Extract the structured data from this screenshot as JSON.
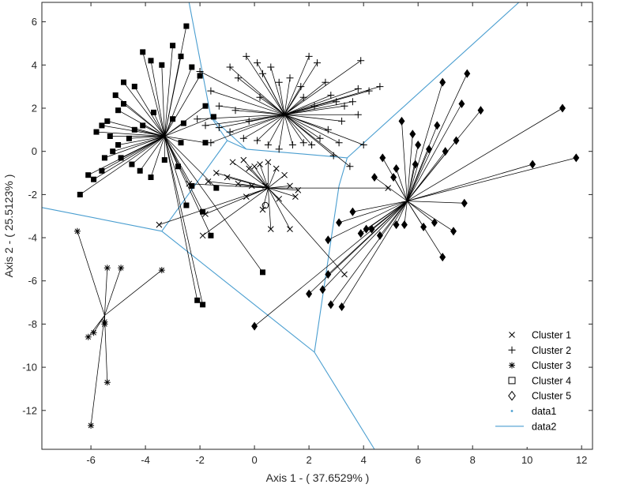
{
  "chart_data": {
    "type": "scatter",
    "title": "",
    "xlabel": "Axis 1 - ( 37.6529% )",
    "ylabel": "Axis 2 - ( 25.5123% )",
    "xlim": [
      -7.8,
      12.4
    ],
    "ylim": [
      -13.8,
      6.9
    ],
    "xticks": [
      -6,
      -4,
      -2,
      0,
      2,
      4,
      6,
      8,
      10,
      12
    ],
    "xtick_labels": [
      "-6",
      "-4",
      "-2",
      "0",
      "2",
      "4",
      "6",
      "8",
      "10",
      "12"
    ],
    "yticks": [
      -12,
      -10,
      -8,
      -6,
      -4,
      -2,
      0,
      2,
      4,
      6
    ],
    "ytick_labels": [
      "-12",
      "-10",
      "-8",
      "-6",
      "-4",
      "-2",
      "0",
      "2",
      "4",
      "6"
    ],
    "grid": false,
    "legend_position": "bottom-right",
    "colors": {
      "points": "#000000",
      "voronoi": "#4a9ed0",
      "axes": "#262626"
    },
    "clusters": [
      {
        "name": "Cluster 1",
        "marker": "x",
        "centroid": [
          0.5,
          -1.7
        ],
        "points": [
          [
            -3.5,
            -3.4
          ],
          [
            -1.9,
            -3.9
          ],
          [
            -1.8,
            -2.9
          ],
          [
            -2.4,
            -1.5
          ],
          [
            -1.7,
            -1.4
          ],
          [
            -1.0,
            -1.2
          ],
          [
            -0.8,
            -0.5
          ],
          [
            -0.6,
            -1.5
          ],
          [
            -0.4,
            -0.4
          ],
          [
            -0.2,
            -0.8
          ],
          [
            0.0,
            -0.7
          ],
          [
            0.2,
            -0.6
          ],
          [
            0.5,
            -0.5
          ],
          [
            0.8,
            -0.8
          ],
          [
            1.1,
            -1.1
          ],
          [
            0.4,
            -1.6
          ],
          [
            -0.3,
            -2.1
          ],
          [
            0.3,
            -2.7
          ],
          [
            0.6,
            -3.6
          ],
          [
            1.3,
            -3.6
          ],
          [
            1.5,
            -2.1
          ],
          [
            1.3,
            -1.6
          ],
          [
            0.9,
            -2.2
          ],
          [
            4.9,
            -1.7
          ],
          [
            3.3,
            -5.7
          ],
          [
            -1.4,
            -1.0
          ],
          [
            1.6,
            -1.8
          ],
          [
            -0.1,
            -1.6
          ]
        ]
      },
      {
        "name": "Cluster 2",
        "marker": "+",
        "centroid": [
          1.1,
          1.7
        ],
        "points": [
          [
            -2.0,
            3.7
          ],
          [
            -1.6,
            2.8
          ],
          [
            -1.3,
            2.1
          ],
          [
            -0.9,
            3.9
          ],
          [
            -0.6,
            3.4
          ],
          [
            -0.3,
            4.4
          ],
          [
            0.1,
            4.1
          ],
          [
            0.3,
            3.6
          ],
          [
            0.6,
            3.9
          ],
          [
            0.9,
            3.2
          ],
          [
            1.3,
            3.4
          ],
          [
            1.7,
            3.0
          ],
          [
            2.0,
            4.4
          ],
          [
            2.3,
            4.1
          ],
          [
            2.6,
            3.2
          ],
          [
            2.8,
            2.6
          ],
          [
            3.0,
            2.3
          ],
          [
            3.3,
            2.1
          ],
          [
            3.6,
            2.3
          ],
          [
            3.9,
            4.2
          ],
          [
            4.2,
            2.8
          ],
          [
            4.6,
            3.0
          ],
          [
            3.8,
            1.7
          ],
          [
            3.2,
            1.4
          ],
          [
            2.7,
            1.0
          ],
          [
            2.4,
            0.6
          ],
          [
            2.1,
            0.3
          ],
          [
            1.8,
            0.4
          ],
          [
            1.4,
            0.3
          ],
          [
            0.9,
            0.1
          ],
          [
            0.5,
            0.3
          ],
          [
            0.1,
            0.5
          ],
          [
            -0.4,
            0.6
          ],
          [
            -0.9,
            0.9
          ],
          [
            -1.3,
            1.1
          ],
          [
            -1.8,
            1.2
          ],
          [
            -2.1,
            1.5
          ],
          [
            -1.6,
            0.4
          ],
          [
            -0.7,
            1.9
          ],
          [
            0.2,
            2.5
          ],
          [
            1.8,
            2.5
          ],
          [
            3.1,
            0.4
          ],
          [
            3.5,
            -0.7
          ],
          [
            4.0,
            0.3
          ],
          [
            2.9,
            -0.2
          ],
          [
            -0.2,
            1.4
          ],
          [
            2.2,
            2.1
          ],
          [
            3.8,
            2.9
          ]
        ]
      },
      {
        "name": "Cluster 3",
        "marker": "*",
        "centroid": [
          -5.5,
          -7.6
        ],
        "points": [
          [
            -6.5,
            -3.7
          ],
          [
            -5.4,
            -5.4
          ],
          [
            -4.9,
            -5.4
          ],
          [
            -3.4,
            -5.5
          ],
          [
            -5.5,
            -8.0
          ],
          [
            -5.5,
            -7.9
          ],
          [
            -5.9,
            -8.4
          ],
          [
            -6.1,
            -8.6
          ],
          [
            -5.4,
            -10.7
          ],
          [
            -6.0,
            -12.7
          ]
        ]
      },
      {
        "name": "Cluster 4",
        "marker": "square",
        "centroid": [
          -3.3,
          0.7
        ],
        "points": [
          [
            -6.4,
            -2.0
          ],
          [
            -6.1,
            -1.1
          ],
          [
            -5.9,
            -1.3
          ],
          [
            -5.6,
            -0.9
          ],
          [
            -5.5,
            -0.3
          ],
          [
            -5.2,
            0.0
          ],
          [
            -5.0,
            0.3
          ],
          [
            -5.3,
            0.7
          ],
          [
            -5.6,
            1.2
          ],
          [
            -5.4,
            1.4
          ],
          [
            -5.0,
            1.9
          ],
          [
            -4.8,
            2.2
          ],
          [
            -5.1,
            2.6
          ],
          [
            -4.8,
            3.2
          ],
          [
            -4.4,
            3.0
          ],
          [
            -4.1,
            4.6
          ],
          [
            -3.8,
            4.2
          ],
          [
            -3.4,
            4.0
          ],
          [
            -3.0,
            4.9
          ],
          [
            -2.7,
            4.4
          ],
          [
            -2.5,
            5.8
          ],
          [
            -2.3,
            3.9
          ],
          [
            -2.0,
            3.5
          ],
          [
            -1.8,
            2.1
          ],
          [
            -1.5,
            1.6
          ],
          [
            -2.6,
            1.3
          ],
          [
            -3.0,
            1.5
          ],
          [
            -3.7,
            1.8
          ],
          [
            -4.1,
            1.2
          ],
          [
            -4.4,
            1.0
          ],
          [
            -4.6,
            0.6
          ],
          [
            -4.9,
            -0.3
          ],
          [
            -4.5,
            -0.6
          ],
          [
            -4.2,
            -0.9
          ],
          [
            -3.8,
            -1.2
          ],
          [
            -3.3,
            -0.4
          ],
          [
            -2.8,
            -0.7
          ],
          [
            -2.3,
            -1.6
          ],
          [
            -1.8,
            0.4
          ],
          [
            -2.5,
            -2.5
          ],
          [
            -1.9,
            -2.8
          ],
          [
            -1.6,
            -3.9
          ],
          [
            -2.1,
            -6.9
          ],
          [
            -1.9,
            -7.1
          ],
          [
            0.3,
            -5.6
          ],
          [
            -1.4,
            -1.7
          ],
          [
            -2.7,
            0.4
          ],
          [
            -5.8,
            0.9
          ]
        ]
      },
      {
        "name": "Cluster 5",
        "marker": "diamond",
        "centroid": [
          5.6,
          -2.3
        ],
        "points": [
          [
            0.0,
            -8.1
          ],
          [
            2.0,
            -6.6
          ],
          [
            2.5,
            -6.4
          ],
          [
            2.8,
            -7.1
          ],
          [
            3.2,
            -7.2
          ],
          [
            2.7,
            -5.7
          ],
          [
            2.7,
            -4.1
          ],
          [
            3.1,
            -3.3
          ],
          [
            3.9,
            -3.8
          ],
          [
            4.1,
            -3.6
          ],
          [
            4.3,
            -3.6
          ],
          [
            4.6,
            -3.9
          ],
          [
            5.2,
            -3.4
          ],
          [
            5.5,
            -3.4
          ],
          [
            6.2,
            -3.5
          ],
          [
            6.6,
            -3.3
          ],
          [
            6.9,
            -4.9
          ],
          [
            7.3,
            -3.7
          ],
          [
            7.7,
            -2.4
          ],
          [
            5.1,
            -1.2
          ],
          [
            4.7,
            -0.3
          ],
          [
            5.2,
            -0.8
          ],
          [
            5.9,
            -0.6
          ],
          [
            6.4,
            0.1
          ],
          [
            6.7,
            1.2
          ],
          [
            7.0,
            0.0
          ],
          [
            7.4,
            0.5
          ],
          [
            7.6,
            2.2
          ],
          [
            7.8,
            3.6
          ],
          [
            8.3,
            1.9
          ],
          [
            5.4,
            1.4
          ],
          [
            5.8,
            0.8
          ],
          [
            6.0,
            0.3
          ],
          [
            6.9,
            3.2
          ],
          [
            10.2,
            -0.6
          ],
          [
            11.3,
            2.0
          ],
          [
            11.8,
            -0.3
          ],
          [
            3.6,
            -2.8
          ],
          [
            4.4,
            -1.2
          ]
        ]
      }
    ],
    "data1_points": [
      [
        0.4,
        -2.5
      ]
    ],
    "voronoi_segments": [
      [
        [
          -2.4,
          6.9
        ],
        [
          -1.6,
          1.6
        ]
      ],
      [
        [
          -1.6,
          1.6
        ],
        [
          -1.0,
          0.5
        ]
      ],
      [
        [
          -1.6,
          1.6
        ],
        [
          -0.3,
          0.1
        ]
      ],
      [
        [
          -1.0,
          0.5
        ],
        [
          -3.4,
          -3.7
        ]
      ],
      [
        [
          -1.0,
          0.5
        ],
        [
          -0.3,
          0.1
        ]
      ],
      [
        [
          -0.3,
          0.1
        ],
        [
          3.4,
          -0.3
        ]
      ],
      [
        [
          3.4,
          -0.3
        ],
        [
          9.7,
          6.9
        ]
      ],
      [
        [
          3.4,
          -0.3
        ],
        [
          3.1,
          -1.6
        ]
      ],
      [
        [
          3.1,
          -1.6
        ],
        [
          2.2,
          -9.3
        ]
      ],
      [
        [
          -3.4,
          -3.7
        ],
        [
          -7.8,
          -2.6
        ]
      ],
      [
        [
          -3.4,
          -3.7
        ],
        [
          2.2,
          -9.3
        ]
      ],
      [
        [
          2.2,
          -9.3
        ],
        [
          4.4,
          -13.8
        ]
      ]
    ],
    "legend": [
      {
        "label": "Cluster 1",
        "marker": "x"
      },
      {
        "label": "Cluster 2",
        "marker": "+"
      },
      {
        "label": "Cluster 3",
        "marker": "*"
      },
      {
        "label": "Cluster 4",
        "marker": "open-square"
      },
      {
        "label": "Cluster 5",
        "marker": "open-diamond"
      },
      {
        "label": "data1",
        "marker": "dot"
      },
      {
        "label": "data2",
        "marker": "line"
      }
    ]
  }
}
